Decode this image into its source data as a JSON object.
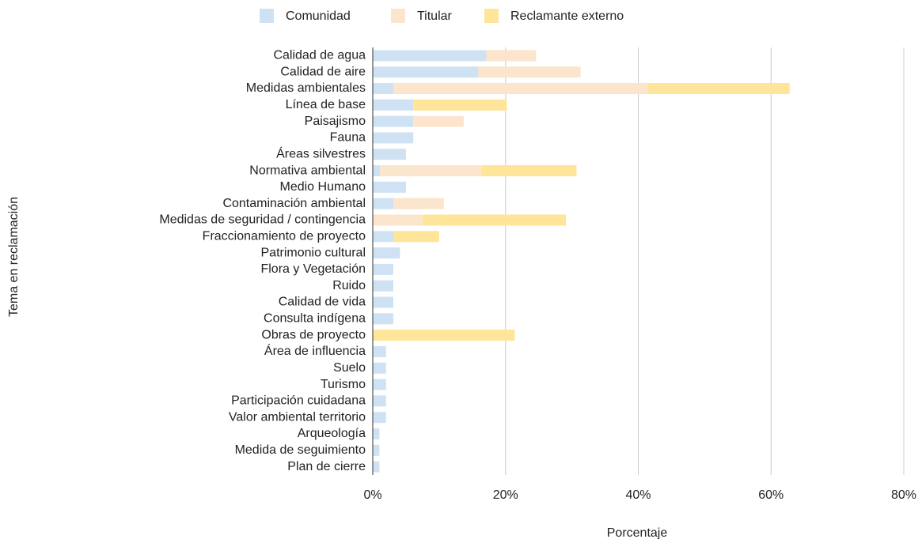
{
  "chart_data": {
    "type": "stacked_bar_horizontal",
    "x_label": "Porcentaje",
    "y_label": "Tema en reclamación",
    "categories": [
      "Calidad de agua",
      "Calidad de aire",
      "Medidas ambientales",
      "Línea de base",
      "Paisajismo",
      "Fauna",
      "Áreas silvestres",
      "Normativa ambiental",
      "Medio Humano",
      "Contaminación ambiental",
      "Medidas de seguridad / contingencia",
      "Fraccionamiento de proyecto",
      "Patrimonio cultural",
      "Flora y Vegetación",
      "Ruido",
      "Calidad de vida",
      "Consulta indígena",
      "Obras de proyecto",
      "Área de influencia",
      "Suelo",
      "Turismo",
      "Participación cuidadana",
      "Valor ambiental territorio",
      "Arqueología",
      "Medida de seguimiento",
      "Plan de cierre"
    ],
    "series": [
      {
        "name": "Comunidad",
        "color": "#cfe2f3",
        "values": [
          17.1,
          15.9,
          3.1,
          6.1,
          6.1,
          6.1,
          5.0,
          1.1,
          5.0,
          3.1,
          0,
          3.1,
          4.1,
          3.1,
          3.1,
          3.1,
          3.1,
          0,
          2.0,
          2.0,
          2.0,
          2.0,
          2.0,
          1.0,
          1.0,
          1.0
        ]
      },
      {
        "name": "Titular",
        "color": "#fce5cd",
        "values": [
          7.5,
          15.4,
          38.3,
          0,
          7.6,
          0,
          0,
          15.2,
          0,
          7.6,
          7.5,
          0,
          0,
          0,
          0,
          0,
          0,
          0,
          0,
          0,
          0,
          0,
          0,
          0,
          0,
          0
        ]
      },
      {
        "name": "Reclamante externo",
        "color": "#ffe599",
        "values": [
          0,
          0,
          21.4,
          14.1,
          0,
          0,
          0,
          14.4,
          0,
          0,
          21.6,
          6.9,
          0,
          0,
          0,
          0,
          0,
          21.4,
          0,
          0,
          0,
          0,
          0,
          0,
          0,
          0
        ]
      }
    ],
    "xlim": [
      0,
      80
    ],
    "xticks": [
      {
        "value": 0,
        "label": "0%"
      },
      {
        "value": 20,
        "label": "20%"
      },
      {
        "value": 40,
        "label": "40%"
      },
      {
        "value": 60,
        "label": "60%"
      },
      {
        "value": 80,
        "label": "80%"
      }
    ],
    "grid": true,
    "legend": "top"
  }
}
